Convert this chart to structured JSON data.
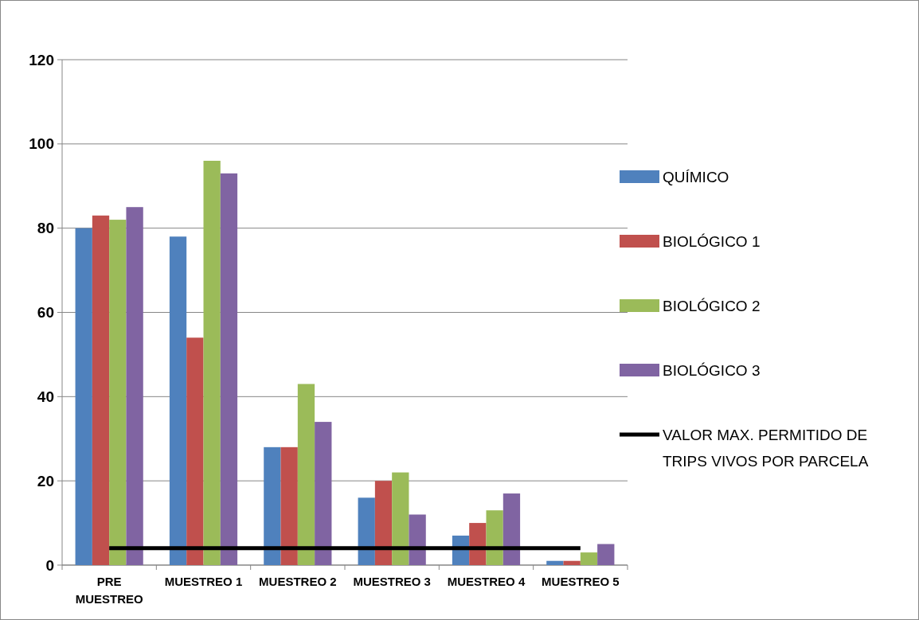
{
  "chart_data": {
    "type": "bar",
    "categories": [
      "PRE MUESTREO",
      "MUESTREO 1",
      "MUESTREO 2",
      "MUESTREO 3",
      "MUESTREO 4",
      "MUESTREO 5"
    ],
    "series": [
      {
        "name": "QUÍMICO",
        "color": "#4f81bd",
        "values": [
          80,
          78,
          28,
          16,
          7,
          1
        ]
      },
      {
        "name": "BIOLÓGICO 1",
        "color": "#c0504d",
        "values": [
          83,
          54,
          28,
          20,
          10,
          1
        ]
      },
      {
        "name": "BIOLÓGICO 2",
        "color": "#9bbb59",
        "values": [
          82,
          96,
          43,
          22,
          13,
          3
        ]
      },
      {
        "name": "BIOLÓGICO 3",
        "color": "#8064a2",
        "values": [
          85,
          93,
          34,
          12,
          17,
          5
        ]
      },
      {
        "name": "VALOR MAX. PERMITIDO DE TRIPS VIVOS POR PARCELA",
        "type": "line",
        "color": "#000000",
        "values": [
          4,
          4,
          4,
          4,
          4,
          4
        ]
      }
    ],
    "ylim": [
      0,
      120
    ],
    "yticks": [
      0,
      20,
      40,
      60,
      80,
      100,
      120
    ],
    "grid": "y",
    "legend": "right",
    "marker": "none",
    "line_style": "solid"
  }
}
